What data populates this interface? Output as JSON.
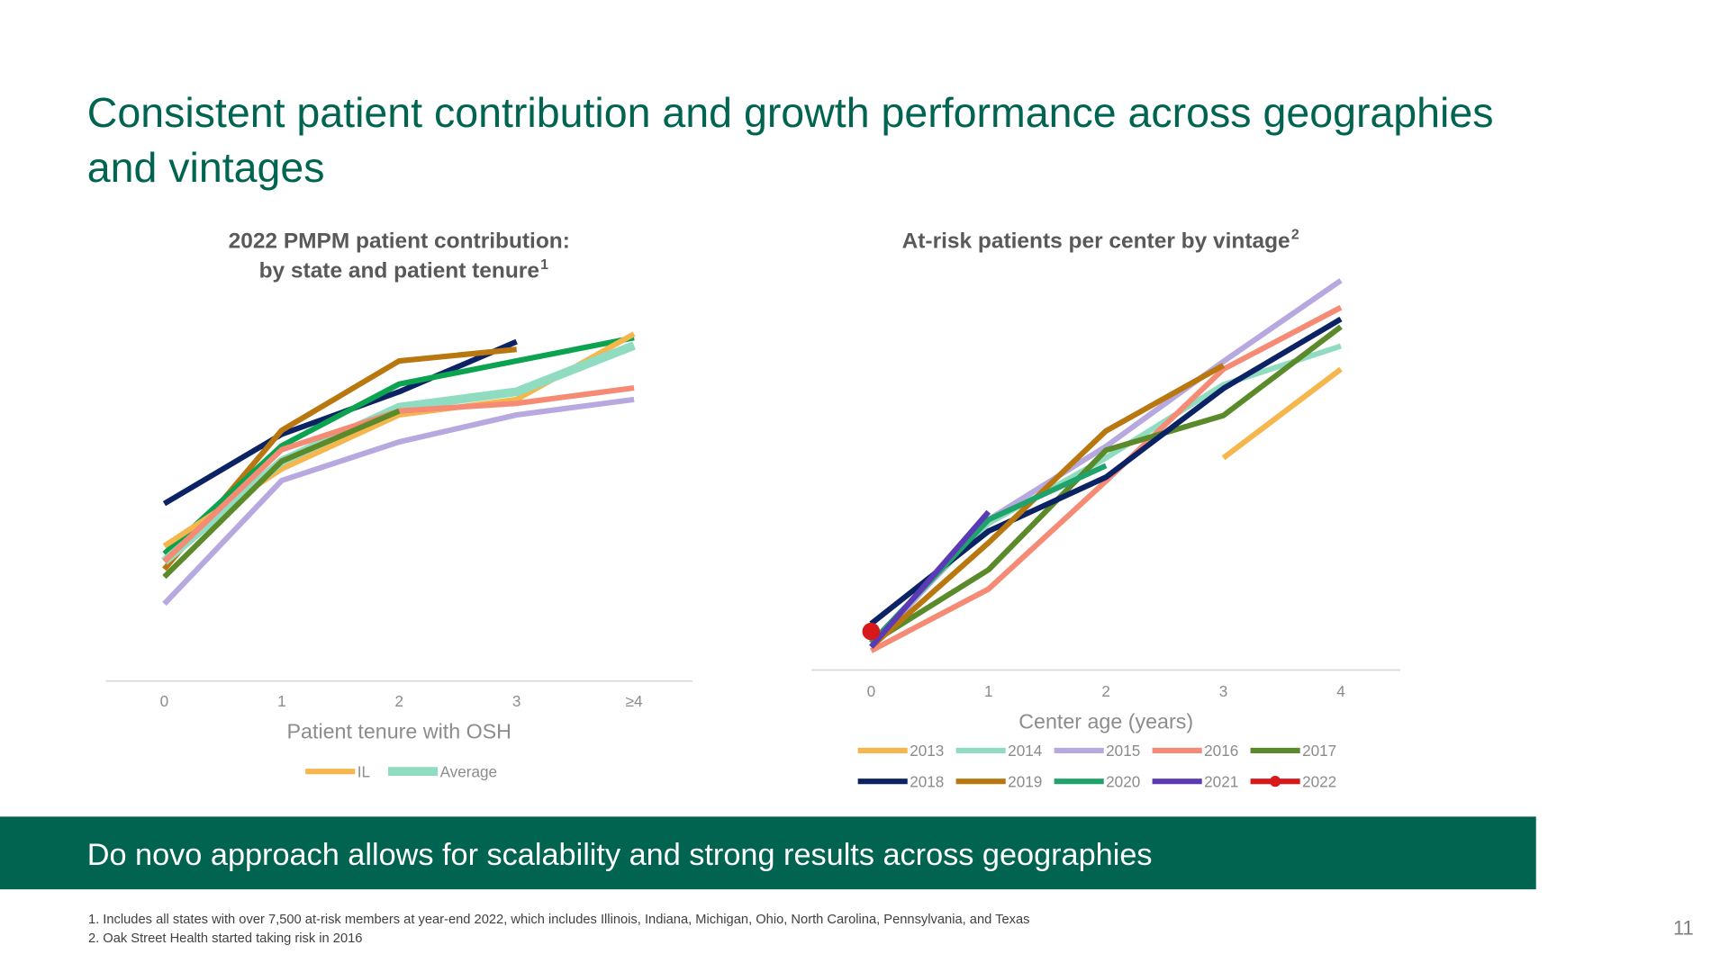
{
  "title": [
    "Consistent patient contribution and growth performance across geographies",
    "and vintages"
  ],
  "banner": "Do novo approach allows for scalability and strong results across geographies",
  "footnotes": [
    "1. Includes all states with over 7,500 at-risk members at year-end 2022, which includes Illinois, Indiana, Michigan, Ohio, North Carolina, Pennsylvania, and Texas",
    "2. Oak Street Health started taking risk in 2016"
  ],
  "page_number": "11",
  "chart_data": [
    {
      "type": "line",
      "title": [
        "2022 PMPM patient contribution:",
        "by state and patient tenure"
      ],
      "title_note": "1",
      "x_label": "Patient tenure with OSH",
      "categories": [
        "0",
        "1",
        "2",
        "3",
        "≥4"
      ],
      "ylim": [
        0,
        100
      ],
      "series": [
        {
          "color": "#0b2265",
          "values": [
            46,
            64,
            75,
            88,
            null
          ]
        },
        {
          "color": "#b8770f",
          "values": [
            29,
            65,
            83,
            86,
            null
          ]
        },
        {
          "color": "#0ba34f",
          "values": [
            33,
            61,
            77,
            83,
            89
          ]
        },
        {
          "name": "IL",
          "color": "#f5b74d",
          "values": [
            35,
            55,
            69,
            73,
            90
          ]
        },
        {
          "name": "Average",
          "color": "#8fdcc0",
          "width": 8,
          "values": [
            31,
            57,
            71,
            75,
            87
          ]
        },
        {
          "color": "#f58b75",
          "values": [
            31,
            60,
            70,
            72,
            76
          ]
        },
        {
          "color": "#b8a8e0",
          "values": [
            20,
            52,
            62,
            69,
            73
          ]
        },
        {
          "color": "#5b8a2a",
          "values": [
            27,
            57,
            70,
            null,
            null
          ]
        }
      ]
    },
    {
      "type": "line",
      "title": [
        "At-risk patients per center by vintage"
      ],
      "title_note": "2",
      "x_label": "Center age (years)",
      "categories": [
        "0",
        "1",
        "2",
        "3",
        "4"
      ],
      "ylim": [
        0,
        105
      ],
      "series": [
        {
          "name": "2013",
          "color": "#f5b74d",
          "values": [
            null,
            null,
            null,
            55,
            78
          ]
        },
        {
          "name": "2014",
          "color": "#8fdcc0",
          "values": [
            7,
            38,
            55,
            74,
            84
          ]
        },
        {
          "name": "2015",
          "color": "#b8a8e0",
          "values": [
            6,
            39,
            58,
            80,
            101
          ]
        },
        {
          "name": "2016",
          "color": "#f58b75",
          "values": [
            5,
            21,
            49,
            78,
            94
          ]
        },
        {
          "name": "2017",
          "color": "#5b8a2a",
          "values": [
            7,
            26,
            57,
            66,
            89
          ]
        },
        {
          "name": "2018",
          "color": "#0b2265",
          "values": [
            12,
            36,
            50,
            73,
            91
          ]
        },
        {
          "name": "2019",
          "color": "#b8770f",
          "values": [
            6,
            33,
            62,
            79,
            null
          ]
        },
        {
          "name": "2020",
          "color": "#1fa36b",
          "values": [
            7,
            39,
            53,
            null,
            null
          ]
        },
        {
          "name": "2021",
          "color": "#5b3bb5",
          "values": [
            6,
            41,
            null,
            null,
            null
          ]
        },
        {
          "name": "2022",
          "color": "#d7191c",
          "marker": true,
          "values": [
            10,
            null,
            null,
            null,
            null
          ]
        }
      ]
    }
  ]
}
